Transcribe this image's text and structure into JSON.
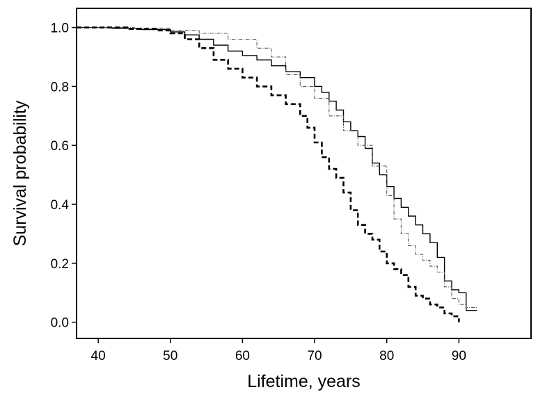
{
  "chart_data": {
    "type": "line",
    "title": "",
    "xlabel": "Lifetime, years",
    "ylabel": "Survival probability",
    "xlim": [
      37,
      100
    ],
    "ylim": [
      -0.055,
      1.065
    ],
    "xticks": [
      40,
      50,
      60,
      70,
      80,
      90
    ],
    "yticks": [
      0.0,
      0.2,
      0.4,
      0.6,
      0.8,
      1.0
    ],
    "xtick_labels": [
      "40",
      "50",
      "60",
      "70",
      "80",
      "90"
    ],
    "ytick_labels": [
      "0.0",
      "0.2",
      "0.4",
      "0.6",
      "0.8",
      "1.0"
    ],
    "grid": false,
    "legend": "none",
    "step": true,
    "series": [
      {
        "style": "solid",
        "color": "#000000",
        "x": [
          37,
          42,
          46,
          50,
          52,
          54,
          56,
          58,
          60,
          62,
          64,
          66,
          68,
          70,
          71,
          72,
          73,
          74,
          75,
          76,
          77,
          78,
          79,
          80,
          81,
          82,
          83,
          84,
          85,
          86,
          87,
          88,
          89,
          90,
          91,
          92.5
        ],
        "y": [
          1.0,
          0.997,
          0.993,
          0.985,
          0.975,
          0.96,
          0.94,
          0.92,
          0.905,
          0.89,
          0.87,
          0.85,
          0.83,
          0.8,
          0.78,
          0.75,
          0.72,
          0.68,
          0.65,
          0.63,
          0.59,
          0.54,
          0.5,
          0.46,
          0.42,
          0.39,
          0.36,
          0.33,
          0.3,
          0.27,
          0.22,
          0.14,
          0.11,
          0.1,
          0.04,
          0.04
        ]
      },
      {
        "style": "dash-dot",
        "color": "#555555",
        "x": [
          37,
          45,
          50,
          54,
          58,
          62,
          64,
          66,
          68,
          70,
          72,
          74,
          76,
          78,
          80,
          81,
          82,
          83,
          84,
          85,
          86,
          87,
          88,
          89,
          90,
          91,
          92.5
        ],
        "y": [
          1.0,
          0.998,
          0.99,
          0.98,
          0.96,
          0.93,
          0.9,
          0.84,
          0.8,
          0.76,
          0.7,
          0.65,
          0.6,
          0.53,
          0.43,
          0.35,
          0.3,
          0.26,
          0.23,
          0.21,
          0.19,
          0.17,
          0.12,
          0.08,
          0.06,
          0.05,
          0.05
        ]
      },
      {
        "style": "dashed",
        "color": "#000000",
        "x": [
          37,
          44,
          48,
          50,
          52,
          54,
          56,
          58,
          60,
          62,
          64,
          66,
          68,
          69,
          70,
          71,
          72,
          73,
          74,
          75,
          76,
          77,
          78,
          79,
          80,
          81,
          82,
          83,
          84,
          85,
          86,
          87,
          88,
          89,
          90
        ],
        "y": [
          1.0,
          0.995,
          0.99,
          0.98,
          0.96,
          0.93,
          0.89,
          0.86,
          0.83,
          0.8,
          0.77,
          0.74,
          0.7,
          0.66,
          0.61,
          0.56,
          0.52,
          0.49,
          0.44,
          0.38,
          0.33,
          0.3,
          0.28,
          0.24,
          0.2,
          0.18,
          0.16,
          0.12,
          0.09,
          0.08,
          0.06,
          0.05,
          0.03,
          0.02,
          0.0
        ]
      }
    ]
  }
}
